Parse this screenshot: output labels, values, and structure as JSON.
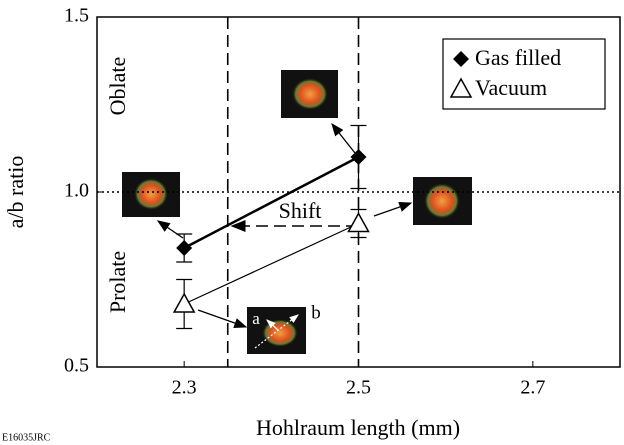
{
  "chart_data": {
    "type": "scatter",
    "xlabel": "Hohlraum length (mm)",
    "ylabel": "a/b ratio",
    "xlim": [
      2.2,
      2.8
    ],
    "ylim": [
      0.5,
      1.5
    ],
    "xticks": [
      2.3,
      2.5,
      2.7
    ],
    "yticks": [
      0.5,
      {
        "value": 1.0,
        "label": "1.0"
      },
      1.5
    ],
    "vlines": [
      2.35,
      2.5
    ],
    "hline": 1.0,
    "legend": "upper right",
    "series": [
      {
        "name": "Gas filled",
        "marker": "diamond",
        "color": "#000",
        "x": [
          2.3,
          2.5
        ],
        "values": [
          0.84,
          1.1
        ],
        "errors": [
          0.04,
          0.09
        ]
      },
      {
        "name": "Vacuum",
        "marker": "triangle",
        "color": "#000",
        "x": [
          2.3,
          2.5
        ],
        "values": [
          0.68,
          0.91
        ],
        "errors": [
          0.07,
          0.04
        ]
      }
    ],
    "annotations": [
      "Oblate",
      "Prolate",
      "Shift",
      "a",
      "b"
    ],
    "footnote": "E16035JRC"
  }
}
